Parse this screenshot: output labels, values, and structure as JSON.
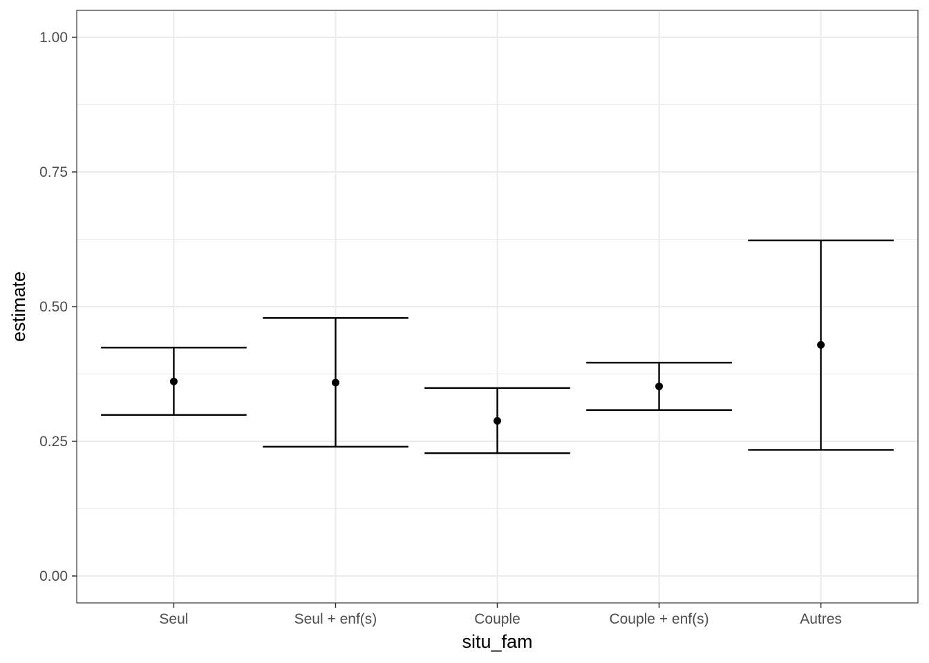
{
  "chart_data": {
    "type": "errorbar",
    "xlabel": "situ_fam",
    "ylabel": "estimate",
    "ylim": [
      -0.05,
      1.05
    ],
    "y_ticks": [
      0.0,
      0.25,
      0.5,
      0.75,
      1.0
    ],
    "y_tick_labels": [
      "0.00",
      "0.25",
      "0.50",
      "0.75",
      "1.00"
    ],
    "categories": [
      "Seul",
      "Seul + enf(s)",
      "Couple",
      "Couple + enf(s)",
      "Autres"
    ],
    "estimate": [
      0.361,
      0.359,
      0.288,
      0.352,
      0.429
    ],
    "conf_low": [
      0.299,
      0.24,
      0.228,
      0.308,
      0.234
    ],
    "conf_high": [
      0.424,
      0.479,
      0.349,
      0.396,
      0.623
    ],
    "grid": true,
    "legend": "none",
    "colors": {
      "marks": "#000000",
      "grid": "#ebebeb",
      "panel_border": "#333333",
      "tick_text": "#4d4d4d"
    }
  }
}
